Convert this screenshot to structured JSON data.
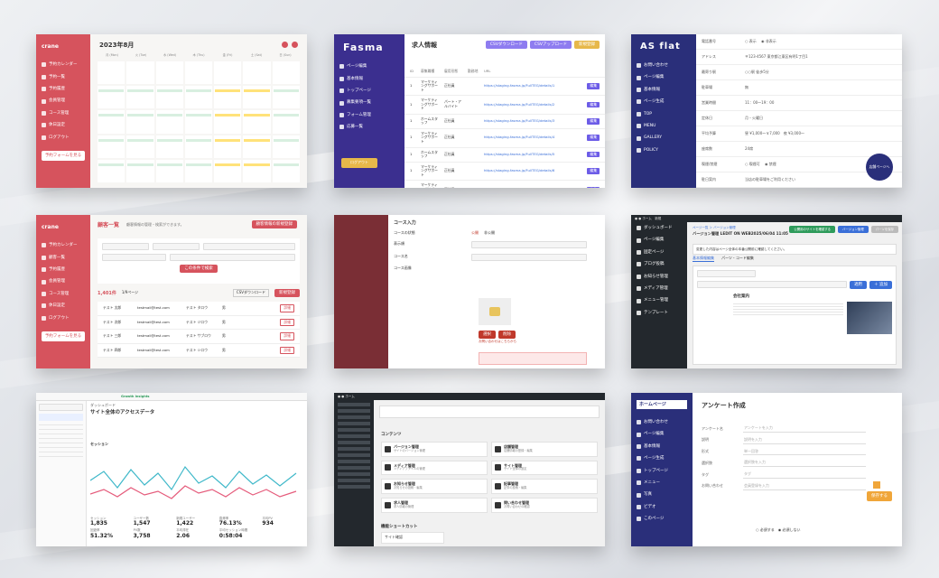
{
  "tile1": {
    "logo": "crane",
    "month_title": "2023年8月",
    "weekdays": [
      "月 (Mon)",
      "火 (Tue)",
      "水 (Wed)",
      "木 (Thu)",
      "金 (Fri)",
      "土 (Sat)",
      "日 (Sun)"
    ],
    "nav": [
      "予約カレンダー",
      "予約一覧",
      "予約履歴",
      "会員管理",
      "コース管理",
      "休日設定",
      "ログアウト"
    ],
    "bottom_button": "予約フォームを見る"
  },
  "tile2": {
    "logo": "Fasma",
    "title": "求人情報",
    "nav": [
      "ページ編集",
      "基本情報",
      "トップページ",
      "募集要項一覧",
      "フォーム管理",
      "応募一覧"
    ],
    "buttons": [
      "CSVダウンロード",
      "CSVアップロード",
      "新規登録"
    ],
    "headers": [
      "ID",
      "募集職種",
      "雇用形態",
      "勤務地",
      "URL"
    ],
    "rows": [
      {
        "id": "1",
        "job": "マーケティングサポート",
        "type": "正社員",
        "url": "https://staging.fasma.jp/FullTEG/details/1"
      },
      {
        "id": "1",
        "job": "マーケティングサポート",
        "type": "パート・アルバイト",
        "url": "https://staging.fasma.jp/FullTEG/details/2"
      },
      {
        "id": "1",
        "job": "ホームスタッフ",
        "type": "正社員",
        "url": "https://staging.fasma.jp/FullTEG/details/3"
      },
      {
        "id": "1",
        "job": "マーケティングサポート",
        "type": "正社員",
        "url": "https://staging.fasma.jp/FullTEG/details/4"
      },
      {
        "id": "1",
        "job": "ホームスタッフ",
        "type": "正社員",
        "url": "https://staging.fasma.jp/FullTEG/details/5"
      },
      {
        "id": "1",
        "job": "マーケティングサポート",
        "type": "正社員",
        "url": "https://staging.fasma.jp/FullTEG/details/6"
      },
      {
        "id": "1",
        "job": "マーケティングサポート",
        "type": "正社員",
        "url": "https://staging.fasma.jp/FullTEG/details/7"
      }
    ],
    "edit_label": "編集"
  },
  "tile3": {
    "logo": "AS flat",
    "nav": [
      "お問い合わせ",
      "ページ編集",
      "基本情報",
      "ページ生成",
      "TOP",
      "MENU",
      "GALLERY",
      "POLICY"
    ],
    "fields": [
      {
        "label": "電話番号",
        "value": "○ 表示 　◉ 非表示"
      },
      {
        "label": "アドレス",
        "value": "〒123-4567 東京都江東区有明1丁目1"
      },
      {
        "label": "最寄り駅",
        "value": "○○駅 徒歩5分"
      },
      {
        "label": "駐車場",
        "value": "無"
      },
      {
        "label": "営業時間",
        "value": "11：00〜19：00"
      },
      {
        "label": "定休日",
        "value": "月・火曜日"
      },
      {
        "label": "平均予算",
        "value": "昼 ¥1,000〜￥7,000　夜 ¥3,000〜"
      },
      {
        "label": "座席数",
        "value": "24席"
      },
      {
        "label": "喫煙/禁煙",
        "value": "○ 喫煙可 　◉ 禁煙"
      },
      {
        "label": "駐日案内",
        "value": "当店の駐車場をご利用ください"
      }
    ],
    "floating_button": "店舗ページへ"
  },
  "tile4": {
    "logo": "crane",
    "heading": "顧客一覧",
    "subtitle": "顧客情報の管理・検索ができます。",
    "nav": [
      "予約カレンダー",
      "顧客一覧",
      "予約履歴",
      "会員管理",
      "コース管理",
      "休日設定",
      "ログアウト"
    ],
    "search_button": "この条件で検索",
    "count": "1,401件",
    "pagination": "1/9ページ",
    "csv_button": "CSVダウンロード",
    "new_button": "新規登録",
    "rows": [
      {
        "name": "テスト 太郎",
        "mail": "testmail@test.com",
        "kana": "テスト タロウ",
        "sex": "男"
      },
      {
        "name": "テスト 次郎",
        "mail": "testmail@test.com",
        "kana": "テスト ジロウ",
        "sex": "男"
      },
      {
        "name": "テスト 三郎",
        "mail": "testmail@test.com",
        "kana": "テスト サブロウ",
        "sex": "男"
      },
      {
        "name": "テスト 四郎",
        "mail": "testmail@test.com",
        "kana": "テスト シロウ",
        "sex": "男"
      }
    ],
    "bottom_button": "予約フォームを見る"
  },
  "tile5": {
    "heading": "コース入力",
    "fields": [
      "コースの状態",
      "表示順",
      "コース名",
      "コース画像"
    ],
    "status_options": [
      "公開",
      "非公開"
    ],
    "hint": "お問い合わせはこちらから"
  },
  "tile6": {
    "breadcrumb": "ページ一覧 ＞ バージョン管理",
    "title": "バージョン管理 LEDIT ON WEB2025/06/04 11:05",
    "buttons": [
      "公開用のサイトを確認する",
      "バージョン管理",
      "パーツを保存"
    ],
    "notice": "変更した内容はページ全体の本番公開前に確認してください。",
    "tabs": [
      "基本情報編集",
      "パーツ・コード編集"
    ],
    "heading_label": "会社案内",
    "nav": [
      "ダッシュボード",
      "ページ編集",
      "固定ページ",
      "ブログ投稿",
      "お知らせ管理",
      "メディア管理",
      "メニュー管理",
      "テンプレート"
    ]
  },
  "tile7": {
    "title": "サイト全体のアクセスデータ",
    "brand": "Growth Insights",
    "page_heading": "ダッシュボード",
    "section": "セッション",
    "metrics": [
      {
        "label": "セッション",
        "value": "1,835"
      },
      {
        "label": "ユーザー数",
        "value": "1,547"
      },
      {
        "label": "新規ユーザー",
        "value": "1,422"
      },
      {
        "label": "直帰率",
        "value": "76.13%"
      },
      {
        "label": "平均PV",
        "value": "934"
      },
      {
        "label": "回遊率",
        "value": "51.32%"
      },
      {
        "label": "PV数",
        "value": "3,758"
      },
      {
        "label": "平均滞在",
        "value": "2.06"
      },
      {
        "label": "平均セッション時間",
        "value": "0:58:04"
      }
    ]
  },
  "tile8": {
    "section_title": "コンテンツ",
    "cards": [
      {
        "title": "バージョン管理",
        "sub": "サイトのバージョン管理"
      },
      {
        "title": "店舗管理",
        "sub": "店舗情報の登録・編集"
      },
      {
        "title": "メディア管理",
        "sub": "メディアファイルの管理"
      },
      {
        "title": "サイト管理",
        "sub": "サイト全体の設定"
      },
      {
        "title": "お知らせ管理",
        "sub": "お知らせの投稿・編集"
      },
      {
        "title": "記事管理",
        "sub": "記事の投稿・編集"
      },
      {
        "title": "求人管理",
        "sub": "求人情報の管理"
      },
      {
        "title": "問い合わせ管理",
        "sub": "お問い合わせの確認"
      }
    ],
    "shortcut_title": "機能ショートカット",
    "shortcut": "サイト確認"
  },
  "tile9": {
    "logo": "ホームページ",
    "title": "アンケート作成",
    "nav": [
      "お問い合わせ",
      "ページ編集",
      "基本情報",
      "ページ生成",
      "トップページ",
      "メニュー",
      "写真",
      "ビデオ",
      "このページ"
    ],
    "fields": [
      {
        "label": "アンケート名",
        "value": "アンケートを入力"
      },
      {
        "label": "説明",
        "value": "説明を入力"
      },
      {
        "label": "形式",
        "value": "単一回答"
      },
      {
        "label": "選択肢",
        "value": "選択肢を入力"
      },
      {
        "label": "タグ",
        "value": "タグ"
      },
      {
        "label": "お問い合わせ",
        "value": "会員登録を入力"
      }
    ],
    "radio": "○ 必須する　◉ 必須しない",
    "save_button": "保存する"
  }
}
